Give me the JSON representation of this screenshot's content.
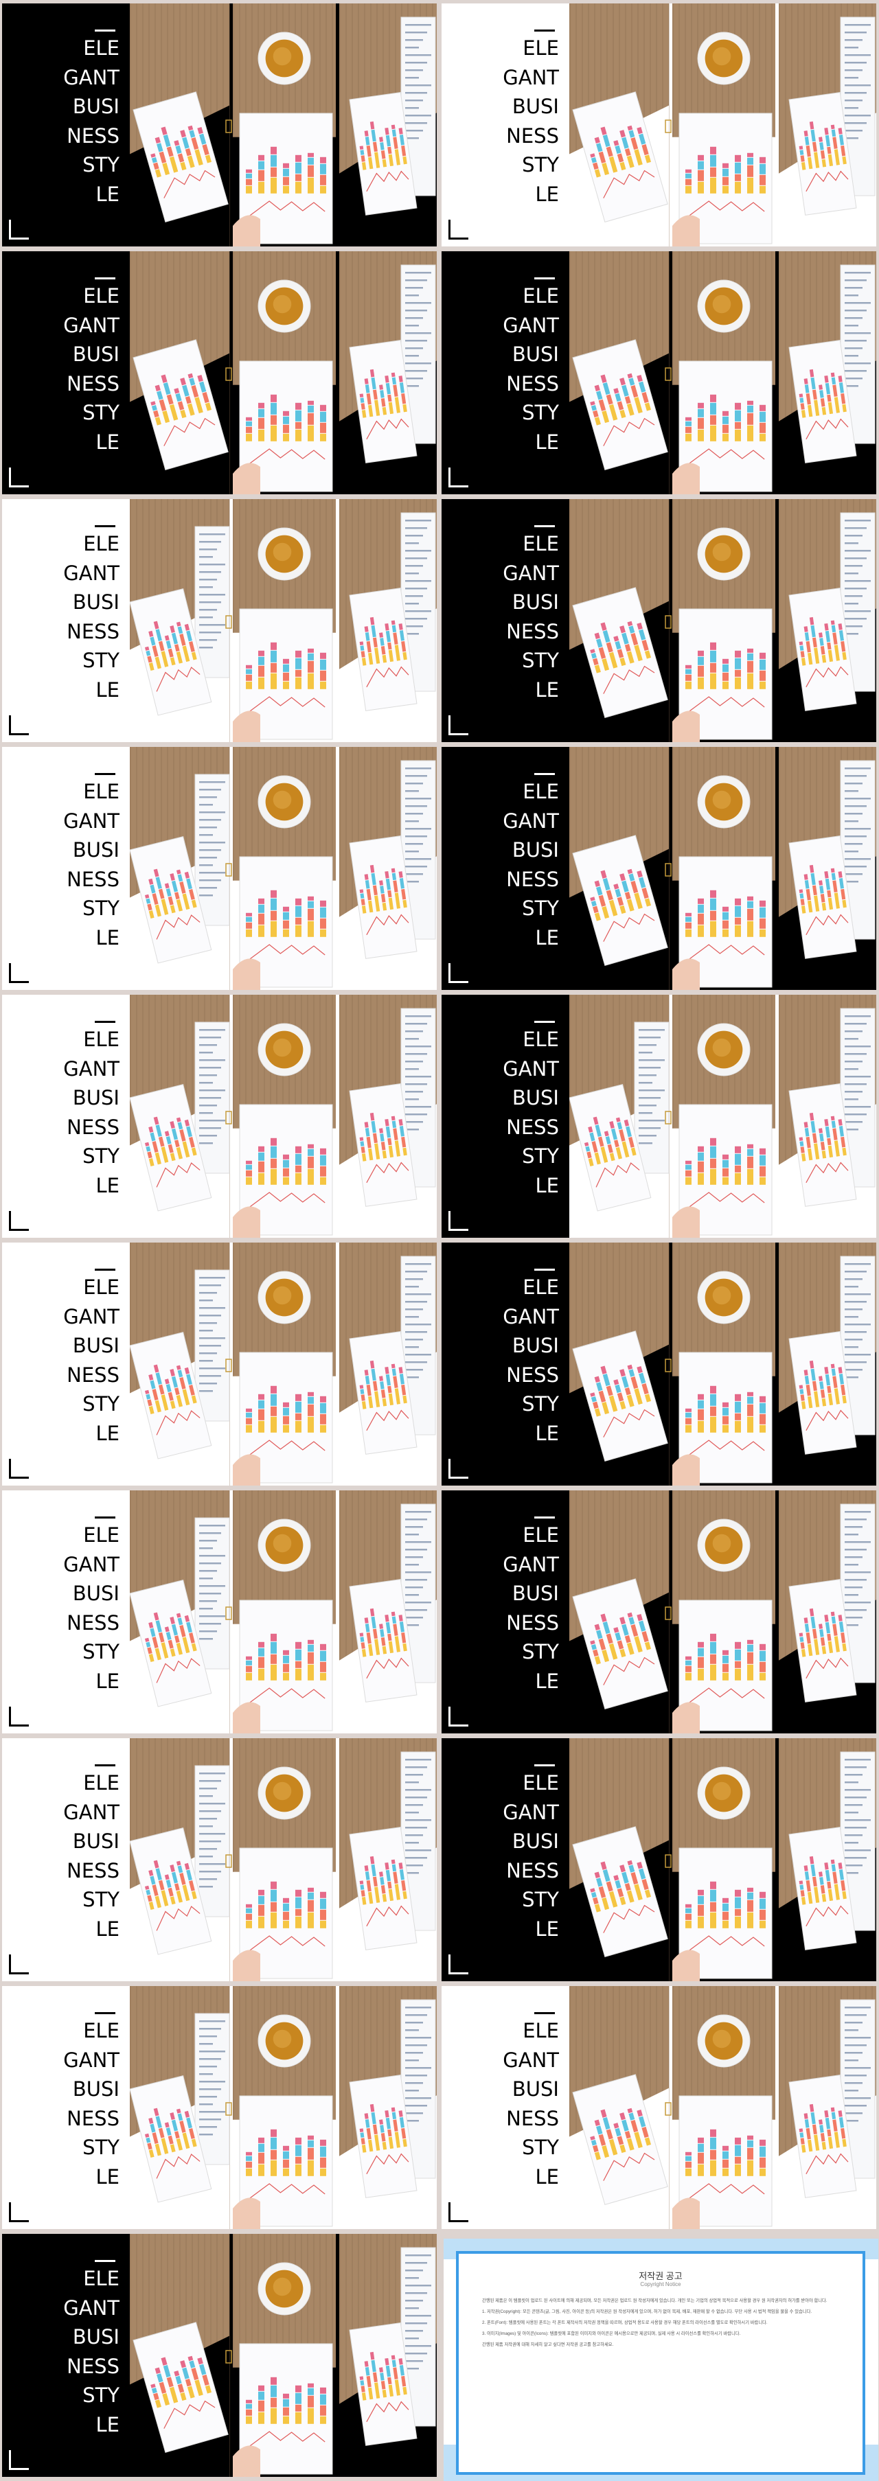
{
  "slide_title_lines": [
    "ELE",
    "GANT",
    "BUSI",
    "NESS",
    "STY",
    "LE"
  ],
  "slides": [
    {
      "theme": "dark",
      "layout": "a"
    },
    {
      "theme": "light",
      "layout": "b"
    },
    {
      "theme": "dark",
      "layout": "a"
    },
    {
      "theme": "dark",
      "layout": "c"
    },
    {
      "theme": "light",
      "layout": "d"
    },
    {
      "theme": "dark",
      "layout": "a"
    },
    {
      "theme": "light",
      "layout": "d"
    },
    {
      "theme": "dark",
      "layout": "c"
    },
    {
      "theme": "light",
      "layout": "e"
    },
    {
      "theme": "dark",
      "layout": "e"
    },
    {
      "theme": "light",
      "layout": "d"
    },
    {
      "theme": "dark",
      "layout": "a"
    },
    {
      "theme": "light",
      "layout": "d"
    },
    {
      "theme": "dark",
      "layout": "c"
    },
    {
      "theme": "light",
      "layout": "d"
    },
    {
      "theme": "dark",
      "layout": "a"
    },
    {
      "theme": "light",
      "layout": "d"
    },
    {
      "theme": "light",
      "layout": "b"
    },
    {
      "theme": "dark",
      "layout": "a"
    }
  ],
  "notice": {
    "title": "저작권 공고",
    "subtitle": "Copyright Notice",
    "paragraphs": [
      "간행된 제품은 이 템플릿이 업로드 된 사이트에 의해 제공되며, 모든 저작권은 업로드 원 작성자에게 있습니다. 개인 또는 기업의 상업적 목적으로 사용할 경우 원 저작권자의 허가를 받아야 합니다.",
      "1. 저작권(Copyright): 모든 콘텐츠(글, 그림, 사진, 아이콘 등)의 저작권은 원 작성자에게 있으며, 허가 없이 복제, 배포, 재판매 할 수 없습니다. 무단 사용 시 법적 책임을 물을 수 있습니다.",
      "2. 폰트(Font): 템플릿에 사용된 폰트는 각 폰트 제작사의 저작권 정책을 따르며, 상업적 용도로 사용할 경우 해당 폰트의 라이선스를 별도로 확인하시기 바랍니다.",
      "3. 이미지(Images) 및 아이콘(Icons): 템플릿에 포함된 이미지와 아이콘은 예시용으로만 제공되며, 실제 사용 시 라이선스를 확인하시기 바랍니다.",
      "간행된 제품 저작권에 대해 자세히 알고 싶다면 저작권 공고를 참고하세요."
    ]
  }
}
